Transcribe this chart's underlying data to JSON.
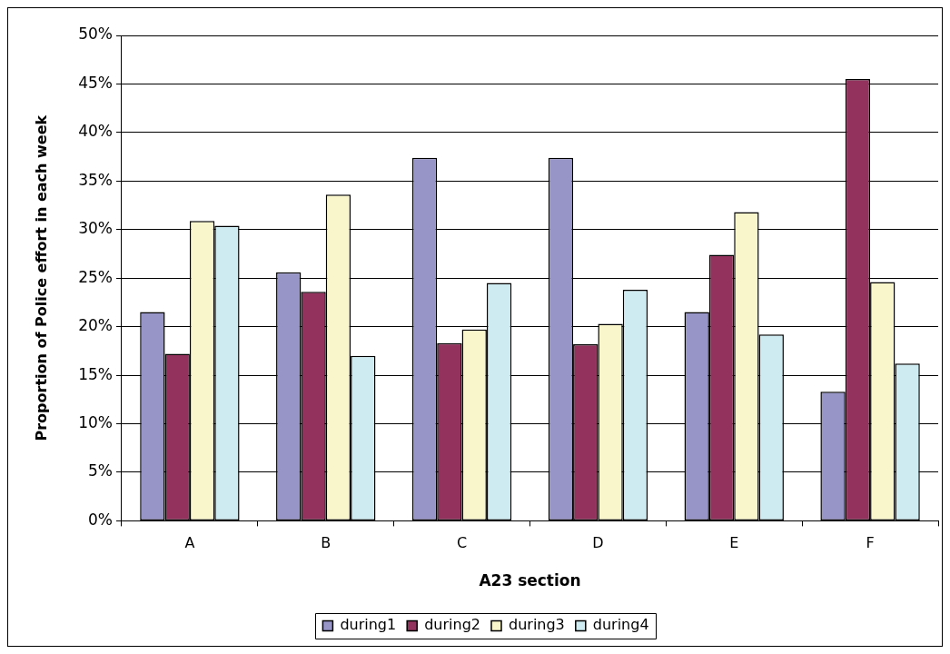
{
  "chart_data": {
    "type": "bar",
    "xlabel": "A23 section",
    "ylabel": "Proportion of Police effort in each week",
    "categories": [
      "A",
      "B",
      "C",
      "D",
      "E",
      "F"
    ],
    "series": [
      {
        "name": "during1",
        "color": "#9794c8",
        "values": [
          21.5,
          25.6,
          37.4,
          37.4,
          21.5,
          13.3
        ]
      },
      {
        "name": "during2",
        "color": "#94325e",
        "values": [
          17.2,
          23.6,
          18.3,
          18.2,
          27.4,
          45.5
        ]
      },
      {
        "name": "during3",
        "color": "#faf6cc",
        "values": [
          30.9,
          33.6,
          19.7,
          20.3,
          31.8,
          24.6
        ]
      },
      {
        "name": "during4",
        "color": "#cdebf0",
        "values": [
          30.4,
          17.0,
          24.5,
          23.8,
          19.2,
          16.2
        ]
      }
    ],
    "ylim": [
      0,
      50
    ],
    "yticks": [
      {
        "value": 0,
        "label": "0%"
      },
      {
        "value": 5,
        "label": "5%"
      },
      {
        "value": 10,
        "label": "10%"
      },
      {
        "value": 15,
        "label": "15%"
      },
      {
        "value": 20,
        "label": "20%"
      },
      {
        "value": 25,
        "label": "25%"
      },
      {
        "value": 30,
        "label": "30%"
      },
      {
        "value": 35,
        "label": "35%"
      },
      {
        "value": 40,
        "label": "40%"
      },
      {
        "value": 45,
        "label": "45%"
      },
      {
        "value": 50,
        "label": "50%"
      }
    ],
    "grid": "y",
    "legend": "bottom"
  }
}
